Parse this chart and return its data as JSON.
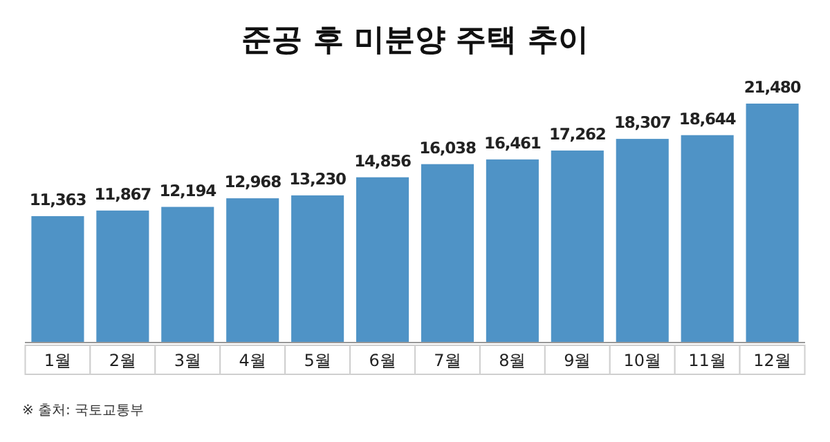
{
  "chart_data": {
    "type": "bar",
    "title": "준공 후 미분양 주택 추이",
    "categories": [
      "1월",
      "2월",
      "3월",
      "4월",
      "5월",
      "6월",
      "7월",
      "8월",
      "9월",
      "10월",
      "11월",
      "12월"
    ],
    "values": [
      11363,
      11867,
      12194,
      12968,
      13230,
      14856,
      16038,
      16461,
      17262,
      18307,
      18644,
      21480
    ],
    "color": "#4f93c6",
    "value_labels": [
      "11,363",
      "11,867",
      "12,194",
      "12,968",
      "13,230",
      "14,856",
      "16,038",
      "16,461",
      "17,262",
      "18,307",
      "18,644",
      "21,480"
    ],
    "annotations": [
      "※ 출처: 국토교통부"
    ]
  }
}
